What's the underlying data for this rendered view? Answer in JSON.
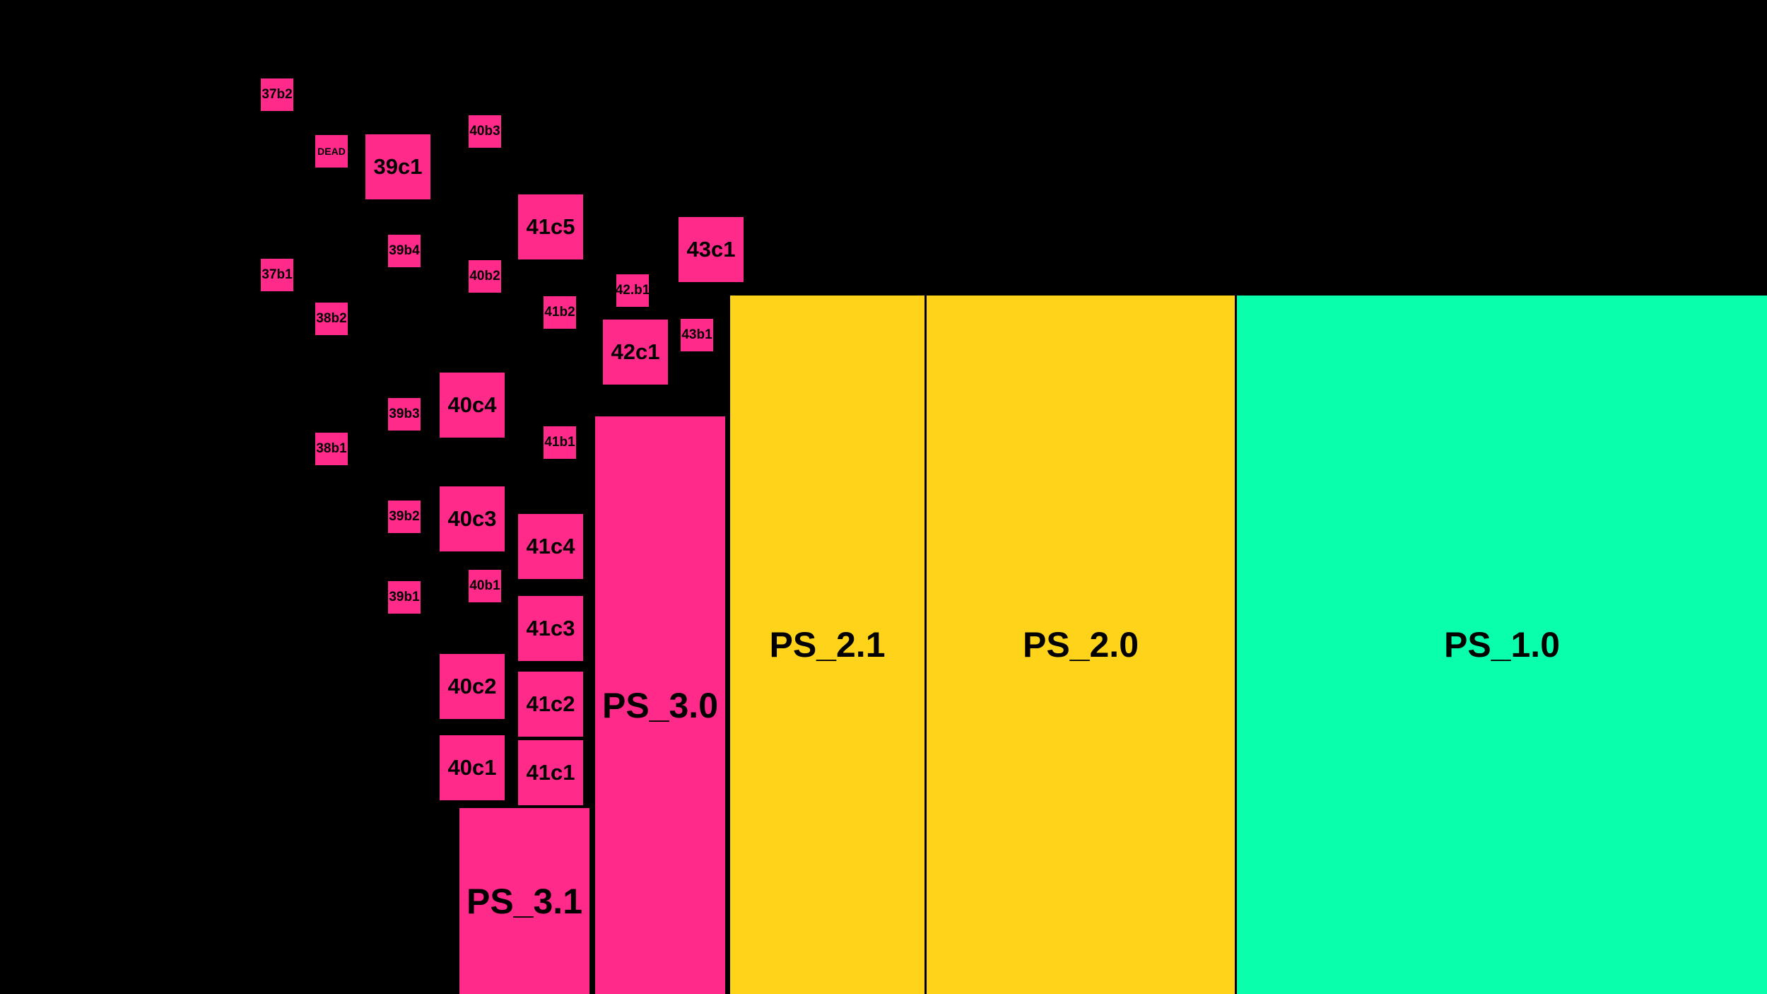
{
  "colors": {
    "background": "#000000",
    "pink": "#ff2a8a",
    "yellow": "#ffd319",
    "green": "#0affac",
    "label": "#000000"
  },
  "blocks": {
    "b37b2": "37b2",
    "b37b1": "37b1",
    "dead": "DEAD",
    "b38b2": "38b2",
    "b38b1": "38b1",
    "b39c1": "39c1",
    "b39b4": "39b4",
    "b39b3": "39b3",
    "b39b2": "39b2",
    "b39b1": "39b1",
    "b40b3": "40b3",
    "b40b2": "40b2",
    "b40b1": "40b1",
    "b40c4": "40c4",
    "b40c3": "40c3",
    "b40c2": "40c2",
    "b40c1": "40c1",
    "b41c5": "41c5",
    "b41b2": "41b2",
    "b41b1": "41b1",
    "b41c4": "41c4",
    "b41c3": "41c3",
    "b41c2": "41c2",
    "b41c1": "41c1",
    "b42b1": "42.b1",
    "b42c1": "42c1",
    "b43c1": "43c1",
    "b43b1": "43b1",
    "ps31": "PS_3.1",
    "ps30": "PS_3.0",
    "ps21": "PS_2.1",
    "ps20": "PS_2.0",
    "ps10": "PS_1.0"
  }
}
